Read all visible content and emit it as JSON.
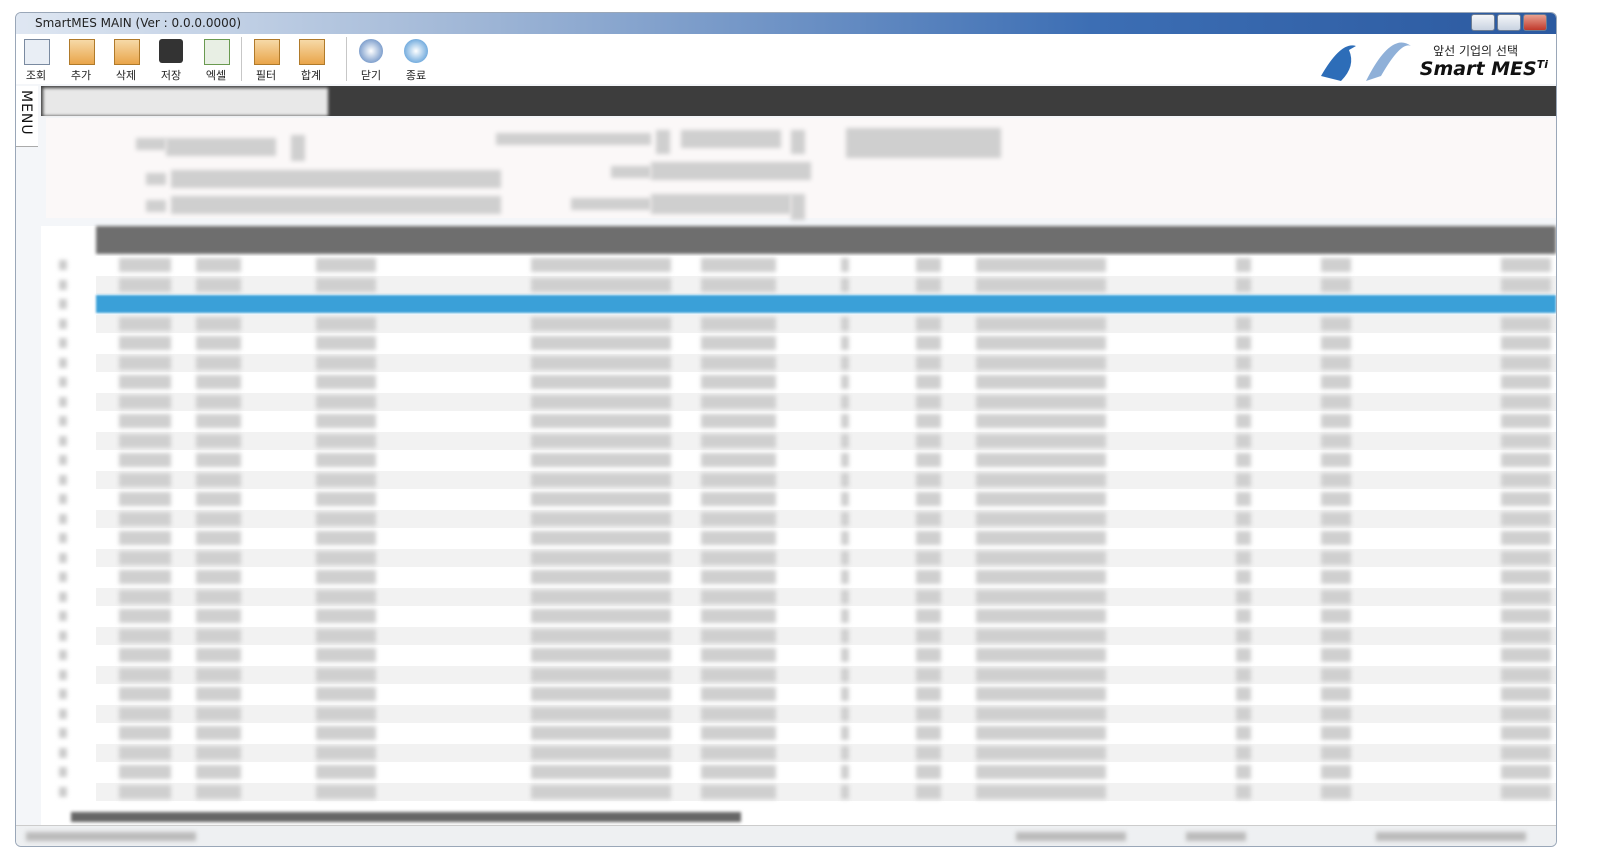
{
  "window": {
    "title": "SmartMES MAIN (Ver : 0.0.0.0000)"
  },
  "toolbar": {
    "buttons": [
      {
        "label": "조회"
      },
      {
        "label": "추가"
      },
      {
        "label": "삭제"
      },
      {
        "label": "저장"
      },
      {
        "label": "엑셀"
      },
      {
        "label": "필터"
      },
      {
        "label": "합계"
      },
      {
        "label": "닫기"
      },
      {
        "label": "종료"
      }
    ]
  },
  "logo": {
    "tagline": "앞선 기업의 선택",
    "brand": "Smart MES",
    "suffix": "Ti"
  },
  "sidebar": {
    "label": "MENU"
  }
}
